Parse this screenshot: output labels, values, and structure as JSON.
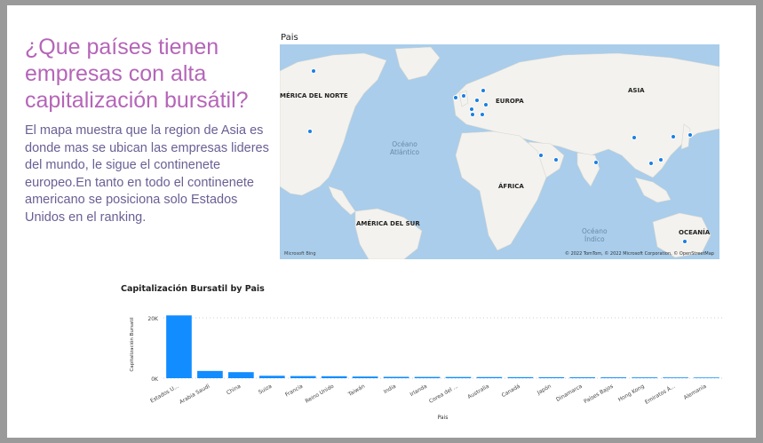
{
  "heading": "¿Que países tienen empresas con alta capitalización bursátil?",
  "description": "  El mapa muestra que la region de Asia es donde mas se ubican las empresas lideres del mundo, le sigue el continenete europeo.En tanto en todo el continenete americano se posiciona solo Estados Unidos en el ranking.",
  "map": {
    "title": "Pais",
    "labels": {
      "north_america": "MÉRICA DEL NORTE",
      "europe": "EUROPA",
      "asia": "ASIA",
      "africa": "ÁFRICA",
      "south_america": "AMÉRICA DEL SUR",
      "oceania": "OCEANÍA",
      "atlantic_1": "Océano",
      "atlantic_2": "Atlántico",
      "indian_1": "Océano",
      "indian_2": "Índico"
    },
    "copyright": "© 2022 TomTom, © 2022 Microsoft Corporation, © OpenStreetMap",
    "provider": "Microsoft Bing",
    "dot_color": "#1a7fe3"
  },
  "chart_data": {
    "type": "bar",
    "title": "Capitalización Bursatil by Pais",
    "xlabel": "Pais",
    "ylabel": "Capitalización Bursatil",
    "categories": [
      "Estados U...",
      "Arabia Saudí",
      "China",
      "Suiza",
      "Francia",
      "Reino Unido",
      "Taiwán",
      "India",
      "Irlanda",
      "Corea del ...",
      "Australia",
      "Canadá",
      "Japón",
      "Dinamarca",
      "Países Bajos",
      "Hong Kong",
      "Emiratos Á...",
      "Alemania"
    ],
    "values": [
      20800,
      2400,
      2000,
      800,
      700,
      650,
      550,
      450,
      420,
      400,
      380,
      350,
      330,
      300,
      280,
      260,
      240,
      220
    ],
    "ylim": [
      0,
      20000
    ],
    "yticks": [
      "0K",
      "20K"
    ],
    "grid": true,
    "bar_color": "#118dff"
  }
}
